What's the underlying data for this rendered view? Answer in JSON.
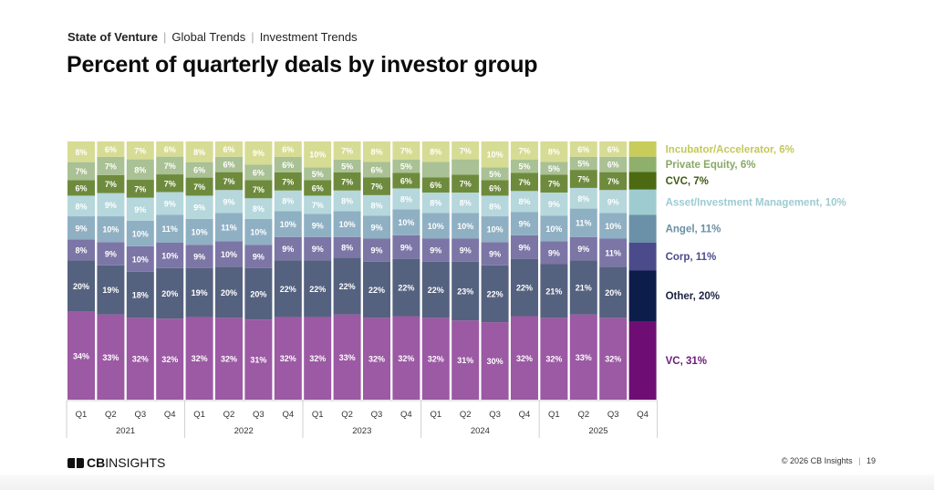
{
  "breadcrumb": {
    "items": [
      "State of Venture",
      "Global Trends",
      "Investment Trends"
    ]
  },
  "page_title": "Percent of quarterly deals by investor group",
  "footer": {
    "logo_bold": "CB",
    "logo_rest": "INSIGHTS",
    "copyright": "© 2026 CB Insights",
    "page_number": "19"
  },
  "chart_data": {
    "type": "bar",
    "stacked": true,
    "title": "Percent of quarterly deals by investor group",
    "xlabel": "",
    "ylabel": "",
    "ylim": [
      0,
      100
    ],
    "grid": false,
    "legend_placement": "right",
    "categories": [
      "Q1",
      "Q2",
      "Q3",
      "Q4",
      "Q1",
      "Q2",
      "Q3",
      "Q4",
      "Q1",
      "Q2",
      "Q3",
      "Q4",
      "Q1",
      "Q2",
      "Q3",
      "Q4",
      "Q1",
      "Q2",
      "Q3",
      "Q4"
    ],
    "years": [
      {
        "label": "2021",
        "quarters": 4
      },
      {
        "label": "2022",
        "quarters": 4
      },
      {
        "label": "2023",
        "quarters": 4
      },
      {
        "label": "2024",
        "quarters": 4
      },
      {
        "label": "2025",
        "quarters": 4
      }
    ],
    "highlight_last": true,
    "series": [
      {
        "name": "VC",
        "color": "#9b5aa3",
        "highlight_color": "#6e0e74",
        "legend_label": "VC, 31%",
        "legend_color": "#6e1a7a",
        "values": [
          34,
          33,
          32,
          32,
          32,
          32,
          31,
          32,
          32,
          33,
          32,
          32,
          32,
          31,
          30,
          32,
          32,
          33,
          32,
          31
        ],
        "labels": [
          "34%",
          "33%",
          "32%",
          "32%",
          "32%",
          "32%",
          "31%",
          "32%",
          "32%",
          "33%",
          "32%",
          "32%",
          "32%",
          "31%",
          "30%",
          "32%",
          "32%",
          "33%",
          "32%",
          ""
        ]
      },
      {
        "name": "Other",
        "color": "#55627f",
        "highlight_color": "#0d1d4a",
        "legend_label": "Other, 20%",
        "legend_color": "#1b2240",
        "values": [
          20,
          19,
          18,
          20,
          19,
          20,
          20,
          22,
          22,
          22,
          22,
          22,
          22,
          23,
          22,
          22,
          21,
          21,
          20,
          20
        ],
        "labels": [
          "20%",
          "19%",
          "18%",
          "20%",
          "19%",
          "20%",
          "20%",
          "22%",
          "22%",
          "22%",
          "22%",
          "22%",
          "22%",
          "23%",
          "22%",
          "22%",
          "21%",
          "21%",
          "20%",
          ""
        ]
      },
      {
        "name": "Corp",
        "color": "#7c76a6",
        "highlight_color": "#4b4b8c",
        "legend_label": "Corp, 11%",
        "legend_color": "#4b4b8c",
        "values": [
          8,
          9,
          10,
          10,
          9,
          10,
          9,
          9,
          9,
          8,
          9,
          9,
          9,
          9,
          9,
          9,
          9,
          9,
          11,
          11
        ],
        "labels": [
          "8%",
          "9%",
          "10%",
          "10%",
          "9%",
          "10%",
          "9%",
          "9%",
          "9%",
          "8%",
          "9%",
          "9%",
          "9%",
          "9%",
          "9%",
          "9%",
          "9%",
          "9%",
          "11%",
          ""
        ]
      },
      {
        "name": "Angel",
        "color": "#8fb0c3",
        "highlight_color": "#6a91a8",
        "legend_label": "Angel, 11%",
        "legend_color": "#6a8ea5",
        "values": [
          9,
          10,
          10,
          11,
          10,
          11,
          10,
          10,
          9,
          10,
          9,
          10,
          10,
          10,
          10,
          9,
          10,
          11,
          10,
          11
        ],
        "labels": [
          "9%",
          "10%",
          "10%",
          "11%",
          "10%",
          "11%",
          "10%",
          "10%",
          "9%",
          "10%",
          "9%",
          "10%",
          "10%",
          "10%",
          "10%",
          "9%",
          "10%",
          "11%",
          "10%",
          ""
        ]
      },
      {
        "name": "Asset/Investment Management",
        "color": "#b6d7dc",
        "highlight_color": "#9ecbd0",
        "legend_label": "Asset/Investment Management, 10%",
        "legend_color": "#9ecbd0",
        "values": [
          8,
          9,
          9,
          9,
          9,
          9,
          8,
          8,
          7,
          8,
          8,
          8,
          8,
          8,
          8,
          8,
          9,
          8,
          9,
          10
        ],
        "labels": [
          "8%",
          "9%",
          "9%",
          "9%",
          "9%",
          "9%",
          "8%",
          "8%",
          "7%",
          "8%",
          "8%",
          "8%",
          "8%",
          "8%",
          "8%",
          "8%",
          "9%",
          "8%",
          "9%",
          ""
        ]
      },
      {
        "name": "CVC",
        "color": "#6e8b3d",
        "highlight_color": "#4b6a12",
        "legend_label": "CVC, 7%",
        "legend_color": "#3f5a12",
        "values": [
          6,
          7,
          7,
          7,
          7,
          7,
          7,
          7,
          6,
          7,
          7,
          6,
          6,
          7,
          6,
          7,
          7,
          7,
          7,
          7
        ],
        "labels": [
          "6%",
          "7%",
          "7%",
          "7%",
          "7%",
          "7%",
          "7%",
          "7%",
          "6%",
          "7%",
          "7%",
          "6%",
          "6%",
          "7%",
          "6%",
          "7%",
          "7%",
          "7%",
          "7%",
          ""
        ]
      },
      {
        "name": "Private Equity",
        "color": "#a9c194",
        "highlight_color": "#8fb06c",
        "legend_label": "Private Equity, 6%",
        "legend_color": "#8aa865",
        "values": [
          7,
          7,
          8,
          7,
          6,
          6,
          6,
          6,
          5,
          5,
          6,
          5,
          6,
          6,
          5,
          5,
          5,
          5,
          6,
          6
        ],
        "labels": [
          "7%",
          "7%",
          "8%",
          "7%",
          "6%",
          "6%",
          "6%",
          "6%",
          "5%",
          "5%",
          "6%",
          "5%",
          "",
          "",
          "5%",
          "5%",
          "5%",
          "5%",
          "6%",
          ""
        ]
      },
      {
        "name": "Incubator/Accelerator",
        "color": "#d7dc94",
        "highlight_color": "#c8cc5a",
        "legend_label": "Incubator/Accelerator, 6%",
        "legend_color": "#c4c85a",
        "values": [
          8,
          6,
          7,
          6,
          8,
          6,
          9,
          6,
          10,
          7,
          8,
          7,
          8,
          7,
          10,
          7,
          8,
          6,
          6,
          6
        ],
        "labels": [
          "8%",
          "6%",
          "7%",
          "6%",
          "8%",
          "6%",
          "9%",
          "6%",
          "10%",
          "7%",
          "8%",
          "7%",
          "8%",
          "7%",
          "10%",
          "7%",
          "8%",
          "6%",
          "6%",
          ""
        ]
      }
    ]
  }
}
